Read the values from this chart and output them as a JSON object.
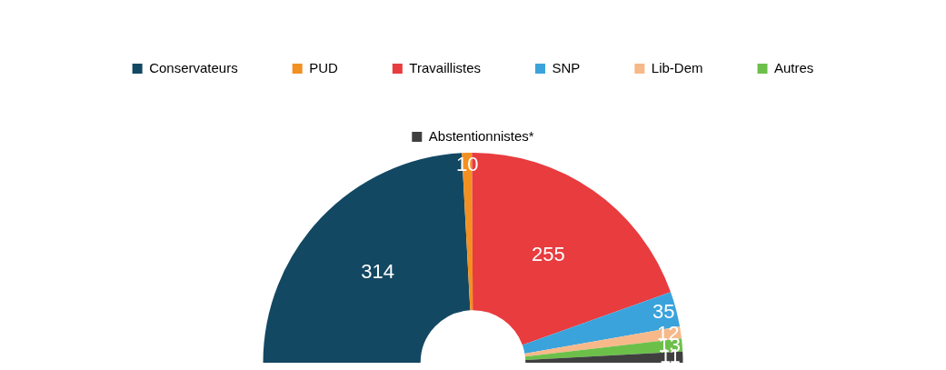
{
  "chart_data": {
    "type": "donut",
    "categories": [
      "Conservateurs",
      "PUD",
      "Travaillistes",
      "SNP",
      "Lib-Dem",
      "Autres",
      "Abstentionnistes*"
    ],
    "values": [
      314,
      10,
      255,
      35,
      12,
      13,
      11
    ],
    "colors": [
      "#134863",
      "#f39022",
      "#e83c3f",
      "#3ba3dc",
      "#f7b98a",
      "#6cc04a",
      "#3f3f3f"
    ],
    "data_labels": true,
    "legend": "top"
  }
}
